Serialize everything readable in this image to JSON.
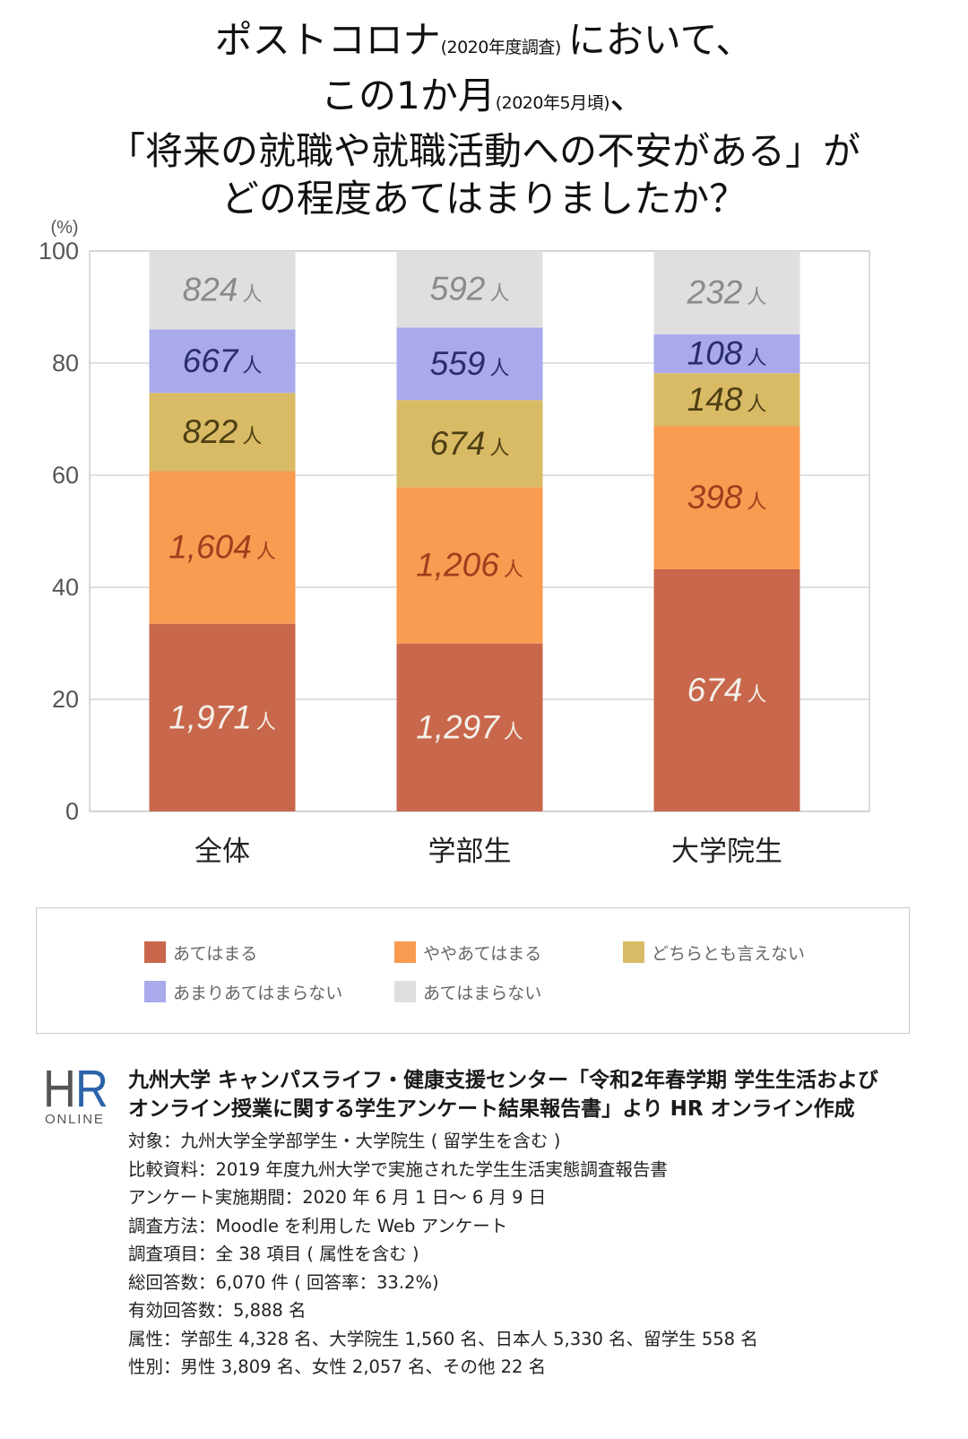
{
  "chart_data": {
    "type": "bar",
    "stacking": "percent",
    "title": {
      "line1": {
        "main": "ポストコロナ",
        "note": "(2020年度調査)",
        "tail": "において、"
      },
      "line2": {
        "main": "この1か月",
        "note": "(2020年5月頃)",
        "tail": "、"
      },
      "line3": "「将来の就職や就職活動への不安がある」が",
      "line4": "どの程度あてはまりましたか？"
    },
    "ylabel": "(%)",
    "ylim": [
      0,
      100
    ],
    "yticks": [
      0,
      20,
      40,
      60,
      80,
      100
    ],
    "categories": [
      "全体",
      "学部生",
      "大学院生"
    ],
    "data_label_unit": "人",
    "grid": true,
    "legend_position": "bottom",
    "series": [
      {
        "name": "あてはまる",
        "color": "#C8674B",
        "label_color": "#F4F0EA",
        "values": [
          1971,
          1297,
          674
        ],
        "data_labels": [
          "1,971",
          "1,297",
          "674"
        ]
      },
      {
        "name": "ややあてはまる",
        "color": "#F99B51",
        "label_color": "#9E3F1E",
        "values": [
          1604,
          1206,
          398
        ],
        "data_labels": [
          "1,604",
          "1,206",
          "398"
        ]
      },
      {
        "name": "どちらとも言えない",
        "color": "#D9BB65",
        "label_color": "#4D3E14",
        "values": [
          822,
          674,
          148
        ],
        "data_labels": [
          "822",
          "674",
          "148"
        ]
      },
      {
        "name": "あまりあてはまらない",
        "color": "#AAA9EC",
        "label_color": "#292D6C",
        "values": [
          667,
          559,
          108
        ],
        "data_labels": [
          "667",
          "559",
          "108"
        ]
      },
      {
        "name": "あてはまらない",
        "color": "#DFDFDF",
        "label_color": "#8A8A8A",
        "values": [
          824,
          592,
          232
        ],
        "data_labels": [
          "824",
          "592",
          "232"
        ]
      }
    ]
  },
  "source": {
    "logo": {
      "letter_h": "H",
      "letter_r": "R",
      "wordmark": "ONLINE",
      "color_h": "#555555",
      "color_r": "#2B63A8"
    },
    "heading_lines": [
      "九州大学 キャンパスライフ・健康支援センター「令和2年春学期 学生生活および",
      "オンライン授業に関する学生アンケート結果報告書」より HR オンライン作成"
    ],
    "details": [
      "対象：九州大学全学部学生・大学院生 ( 留学生を含む )",
      "比較資料：2019 年度九州大学で実施された学生生活実態調査報告書",
      "アンケート実施期間：2020 年 6 月 1 日〜 6 月 9 日",
      "調査方法：Moodle を利用した Web アンケート",
      "調査項目：全 38 項目 ( 属性を含む )",
      "総回答数：6,070 件 ( 回答率：33.2%)",
      "有効回答数：5,888 名",
      "属性：学部生 4,328 名、大学院生 1,560 名、日本人 5,330 名、留学生 558 名",
      "性別：男性 3,809 名、女性 2,057 名、その他 22 名"
    ]
  }
}
